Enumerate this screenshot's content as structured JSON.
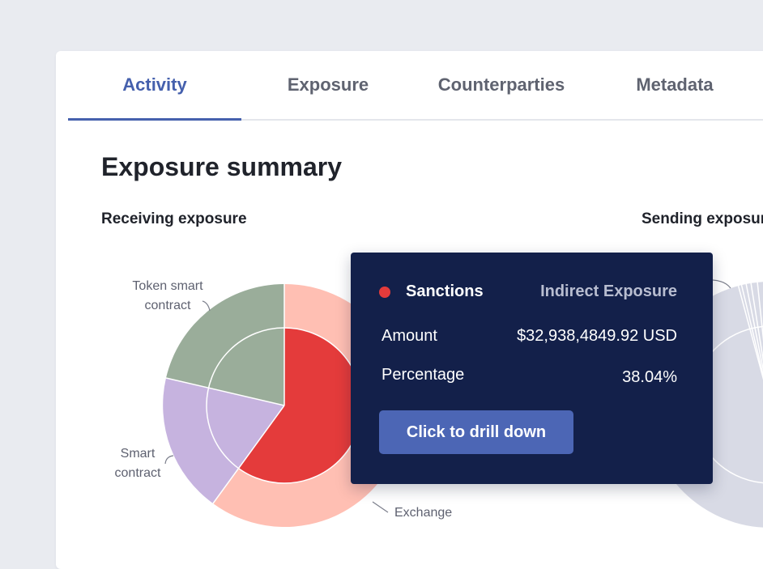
{
  "tabs": [
    {
      "label": "Activity",
      "active": true
    },
    {
      "label": "Exposure",
      "active": false
    },
    {
      "label": "Counterparties",
      "active": false
    },
    {
      "label": "Metadata",
      "active": false
    }
  ],
  "heading": "Exposure summary",
  "receiving": {
    "title": "Receiving exposure",
    "callouts": {
      "token_smart_contract": [
        "Token smart",
        "contract"
      ],
      "smart_contract": [
        "Smart",
        "contract"
      ],
      "exchange": "Exchange"
    }
  },
  "sending": {
    "title": "Sending exposure"
  },
  "tooltip": {
    "category": "Sanctions",
    "exposure_type": "Indirect Exposure",
    "amount_label": "Amount",
    "amount_value": "$32,938,4849.92 USD",
    "percentage_label": "Percentage",
    "percentage_value": "38.04%",
    "button_label": "Click to drill down",
    "dot_color": "#e43b3b"
  },
  "colors": {
    "accent": "#4560ad",
    "sanctions": "#e43b3b",
    "exchange": "#ffbfb3",
    "smart_contract": "#c6b3df",
    "token_smart_contract": "#9aad9a",
    "sending_gray": "#d8dae5"
  }
}
